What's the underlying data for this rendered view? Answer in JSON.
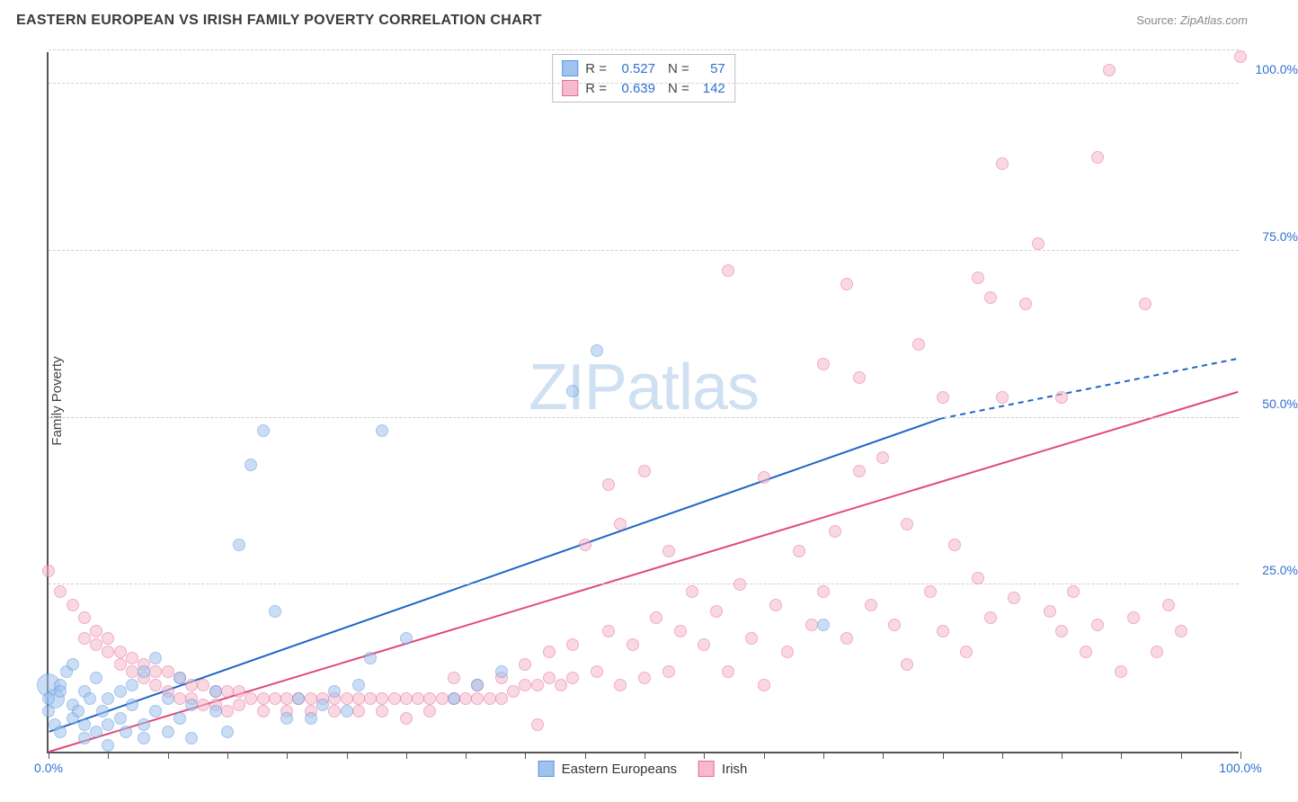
{
  "header": {
    "title": "EASTERN EUROPEAN VS IRISH FAMILY POVERTY CORRELATION CHART",
    "source_label": "Source:",
    "source_value": "ZipAtlas.com"
  },
  "axes": {
    "y_title": "Family Poverty",
    "xlim": [
      0,
      100
    ],
    "ylim": [
      0,
      105
    ],
    "x_ticks": [
      0,
      5,
      10,
      15,
      20,
      25,
      30,
      35,
      40,
      45,
      50,
      55,
      60,
      65,
      70,
      75,
      80,
      85,
      90,
      95,
      100
    ],
    "x_tick_labels": {
      "0": "0.0%",
      "100": "100.0%"
    },
    "y_gridlines": [
      25,
      50,
      75,
      100,
      105
    ],
    "y_tick_labels": {
      "25": "25.0%",
      "50": "50.0%",
      "75": "75.0%",
      "100": "100.0%"
    },
    "grid_color": "#d6d6d6",
    "axis_color": "#555555",
    "tick_label_color": "#2f6fd0",
    "tick_label_fontsize": 14
  },
  "watermark": {
    "text_bold": "ZIP",
    "text_light": "atlas",
    "color": "#cfe0f2"
  },
  "series": [
    {
      "id": "eastern_europeans",
      "label": "Eastern Europeans",
      "R": "0.527",
      "N": "57",
      "fill": "#9fc3ee",
      "stroke": "#5a94da",
      "fill_opacity": 0.55,
      "marker_r": 7,
      "trend": {
        "x1": 0,
        "y1": 3,
        "x2": 75,
        "y2": 50,
        "dash_x2": 100,
        "dash_y2": 59,
        "color": "#1e65c8",
        "width": 2
      },
      "points": [
        [
          0,
          8
        ],
        [
          0,
          6
        ],
        [
          0.5,
          4
        ],
        [
          1,
          3
        ],
        [
          1,
          10
        ],
        [
          1,
          9
        ],
        [
          1.5,
          12
        ],
        [
          2,
          5
        ],
        [
          2,
          7
        ],
        [
          2,
          13
        ],
        [
          2.5,
          6
        ],
        [
          3,
          4
        ],
        [
          3,
          9
        ],
        [
          3,
          2
        ],
        [
          3.5,
          8
        ],
        [
          4,
          3
        ],
        [
          4,
          11
        ],
        [
          4.5,
          6
        ],
        [
          5,
          4
        ],
        [
          5,
          8
        ],
        [
          5,
          1
        ],
        [
          6,
          9
        ],
        [
          6,
          5
        ],
        [
          6.5,
          3
        ],
        [
          7,
          7
        ],
        [
          7,
          10
        ],
        [
          8,
          4
        ],
        [
          8,
          2
        ],
        [
          8,
          12
        ],
        [
          9,
          6
        ],
        [
          9,
          14
        ],
        [
          10,
          8
        ],
        [
          10,
          3
        ],
        [
          11,
          5
        ],
        [
          11,
          11
        ],
        [
          12,
          7
        ],
        [
          12,
          2
        ],
        [
          14,
          9
        ],
        [
          14,
          6
        ],
        [
          15,
          3
        ],
        [
          16,
          31
        ],
        [
          17,
          43
        ],
        [
          18,
          48
        ],
        [
          19,
          21
        ],
        [
          20,
          5
        ],
        [
          21,
          8
        ],
        [
          22,
          5
        ],
        [
          23,
          7
        ],
        [
          24,
          9
        ],
        [
          25,
          6
        ],
        [
          26,
          10
        ],
        [
          27,
          14
        ],
        [
          28,
          48
        ],
        [
          30,
          17
        ],
        [
          34,
          8
        ],
        [
          36,
          10
        ],
        [
          38,
          12
        ],
        [
          44,
          54
        ],
        [
          46,
          60
        ],
        [
          65,
          19
        ]
      ],
      "big_points": [
        [
          0,
          10,
          13
        ],
        [
          0.5,
          8,
          11
        ]
      ]
    },
    {
      "id": "irish",
      "label": "Irish",
      "R": "0.639",
      "N": "142",
      "fill": "#f7b9cc",
      "stroke": "#e76a94",
      "fill_opacity": 0.55,
      "marker_r": 7,
      "trend": {
        "x1": 0,
        "y1": 0,
        "x2": 100,
        "y2": 54,
        "color": "#e1497c",
        "width": 2
      },
      "points": [
        [
          0,
          27
        ],
        [
          1,
          24
        ],
        [
          2,
          22
        ],
        [
          3,
          20
        ],
        [
          3,
          17
        ],
        [
          4,
          18
        ],
        [
          4,
          16
        ],
        [
          5,
          17
        ],
        [
          5,
          15
        ],
        [
          6,
          15
        ],
        [
          6,
          13
        ],
        [
          7,
          14
        ],
        [
          7,
          12
        ],
        [
          8,
          13
        ],
        [
          8,
          11
        ],
        [
          9,
          12
        ],
        [
          9,
          10
        ],
        [
          10,
          12
        ],
        [
          10,
          9
        ],
        [
          11,
          11
        ],
        [
          11,
          8
        ],
        [
          12,
          10
        ],
        [
          12,
          8
        ],
        [
          13,
          10
        ],
        [
          13,
          7
        ],
        [
          14,
          9
        ],
        [
          14,
          7
        ],
        [
          15,
          9
        ],
        [
          15,
          6
        ],
        [
          16,
          9
        ],
        [
          16,
          7
        ],
        [
          17,
          8
        ],
        [
          18,
          8
        ],
        [
          18,
          6
        ],
        [
          19,
          8
        ],
        [
          20,
          8
        ],
        [
          20,
          6
        ],
        [
          21,
          8
        ],
        [
          22,
          8
        ],
        [
          22,
          6
        ],
        [
          23,
          8
        ],
        [
          24,
          8
        ],
        [
          24,
          6
        ],
        [
          25,
          8
        ],
        [
          26,
          8
        ],
        [
          26,
          6
        ],
        [
          27,
          8
        ],
        [
          28,
          8
        ],
        [
          28,
          6
        ],
        [
          29,
          8
        ],
        [
          30,
          8
        ],
        [
          30,
          5
        ],
        [
          31,
          8
        ],
        [
          32,
          8
        ],
        [
          32,
          6
        ],
        [
          33,
          8
        ],
        [
          34,
          8
        ],
        [
          34,
          11
        ],
        [
          35,
          8
        ],
        [
          36,
          8
        ],
        [
          36,
          10
        ],
        [
          37,
          8
        ],
        [
          38,
          8
        ],
        [
          38,
          11
        ],
        [
          39,
          9
        ],
        [
          40,
          10
        ],
        [
          40,
          13
        ],
        [
          41,
          10
        ],
        [
          41,
          4
        ],
        [
          42,
          11
        ],
        [
          42,
          15
        ],
        [
          43,
          10
        ],
        [
          44,
          11
        ],
        [
          44,
          16
        ],
        [
          45,
          31
        ],
        [
          46,
          12
        ],
        [
          47,
          40
        ],
        [
          47,
          18
        ],
        [
          48,
          34
        ],
        [
          48,
          10
        ],
        [
          49,
          16
        ],
        [
          50,
          42
        ],
        [
          50,
          11
        ],
        [
          51,
          20
        ],
        [
          52,
          12
        ],
        [
          52,
          30
        ],
        [
          53,
          18
        ],
        [
          54,
          24
        ],
        [
          55,
          16
        ],
        [
          56,
          21
        ],
        [
          57,
          12
        ],
        [
          57,
          72
        ],
        [
          58,
          25
        ],
        [
          59,
          17
        ],
        [
          60,
          41
        ],
        [
          60,
          10
        ],
        [
          61,
          22
        ],
        [
          62,
          15
        ],
        [
          63,
          30
        ],
        [
          64,
          19
        ],
        [
          65,
          58
        ],
        [
          65,
          24
        ],
        [
          66,
          33
        ],
        [
          67,
          70
        ],
        [
          67,
          17
        ],
        [
          68,
          56
        ],
        [
          68,
          42
        ],
        [
          69,
          22
        ],
        [
          70,
          44
        ],
        [
          71,
          19
        ],
        [
          72,
          34
        ],
        [
          72,
          13
        ],
        [
          73,
          61
        ],
        [
          74,
          24
        ],
        [
          75,
          53
        ],
        [
          75,
          18
        ],
        [
          76,
          31
        ],
        [
          77,
          15
        ],
        [
          78,
          71
        ],
        [
          78,
          26
        ],
        [
          79,
          68
        ],
        [
          79,
          20
        ],
        [
          80,
          53
        ],
        [
          80,
          88
        ],
        [
          81,
          23
        ],
        [
          82,
          67
        ],
        [
          83,
          76
        ],
        [
          84,
          21
        ],
        [
          85,
          53
        ],
        [
          85,
          18
        ],
        [
          86,
          24
        ],
        [
          87,
          15
        ],
        [
          88,
          89
        ],
        [
          88,
          19
        ],
        [
          89,
          102
        ],
        [
          90,
          12
        ],
        [
          91,
          20
        ],
        [
          92,
          67
        ],
        [
          93,
          15
        ],
        [
          94,
          22
        ],
        [
          95,
          18
        ],
        [
          100,
          104
        ]
      ],
      "big_points": []
    }
  ],
  "legend_top": {
    "border_color": "#bfbfbf",
    "rows": [
      {
        "swatch_fill": "#9fc3ee",
        "swatch_stroke": "#5a94da",
        "r_label": "R =",
        "r_val": "0.527",
        "n_label": "N =",
        "n_val": "57"
      },
      {
        "swatch_fill": "#f7b9cc",
        "swatch_stroke": "#e76a94",
        "r_label": "R =",
        "r_val": "0.639",
        "n_label": "N =",
        "n_val": "142"
      }
    ]
  },
  "legend_bottom": [
    {
      "swatch_fill": "#9fc3ee",
      "swatch_stroke": "#5a94da",
      "label": "Eastern Europeans"
    },
    {
      "swatch_fill": "#f7b9cc",
      "swatch_stroke": "#e76a94",
      "label": "Irish"
    }
  ]
}
